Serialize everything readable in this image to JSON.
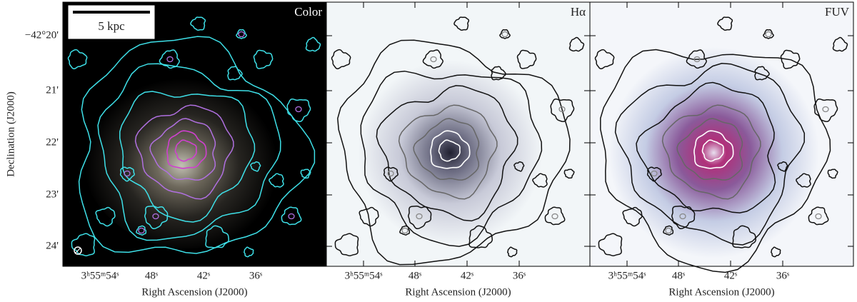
{
  "y_axis": {
    "label": "Declination (J2000)",
    "ticks": [
      "−42°20'",
      "21'",
      "22'",
      "23'",
      "24'"
    ]
  },
  "scale_bar": {
    "label": "5 kpc"
  },
  "panels": [
    {
      "label": "Color",
      "x_ticks": [
        "3ʰ55ᵐ54ˢ",
        "48ˢ",
        "42ˢ",
        "36ˢ"
      ],
      "x_axis_label": "Right Ascension (J2000)"
    },
    {
      "label": "Hα",
      "x_ticks": [
        "3ʰ55ᵐ54ˢ",
        "48ˢ",
        "42ˢ",
        "36ˢ"
      ],
      "x_axis_label": "Right Ascension (J2000)"
    },
    {
      "label": "FUV",
      "x_ticks": [
        "3ʰ55ᵐ54ˢ",
        "48ˢ",
        "42ˢ",
        "36ˢ"
      ],
      "x_axis_label": "Right Ascension (J2000)"
    }
  ]
}
